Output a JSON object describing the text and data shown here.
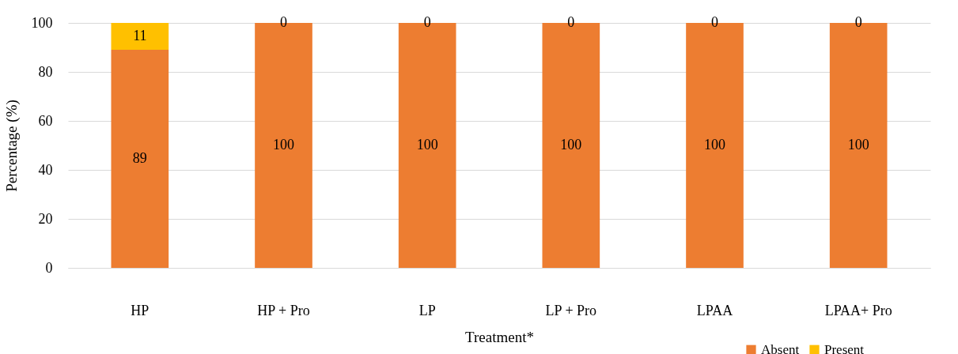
{
  "chart_data": {
    "type": "bar",
    "stacked": true,
    "xlabel": "Treatment*",
    "ylabel": "Percentage (%)",
    "categories": [
      "HP",
      "HP + Pro",
      "LP",
      "LP + Pro",
      "LPAA",
      "LPAA+ Pro"
    ],
    "series": [
      {
        "name": "Absent",
        "color": "#ed7d31",
        "values": [
          89,
          100,
          100,
          100,
          100,
          100
        ]
      },
      {
        "name": "Present",
        "color": "#ffc000",
        "values": [
          11,
          0,
          0,
          0,
          0,
          0
        ]
      }
    ],
    "ylim": [
      0,
      100
    ],
    "yticks": [
      0,
      20,
      40,
      60,
      80,
      100
    ],
    "grid": "y",
    "legend": "bottom right",
    "data_labels": true
  }
}
